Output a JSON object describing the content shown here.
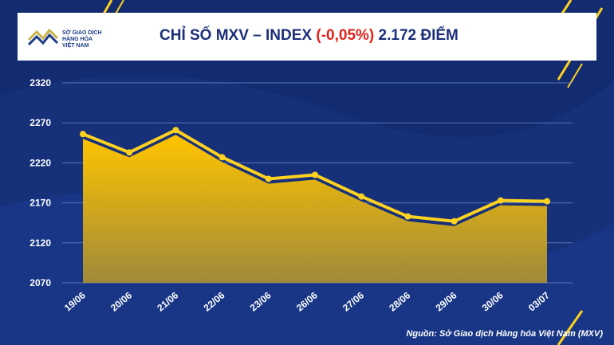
{
  "header": {
    "logo_lines": [
      "SỞ GIAO DỊCH",
      "HÀNG HÓA",
      "VIỆT NAM"
    ],
    "title_prefix": "CHỈ SỐ MXV – INDEX",
    "title_change": "(-0,05%)",
    "title_value": "2.172 ĐIỂM"
  },
  "colors": {
    "background": "#16307a",
    "line": "#ffd21f",
    "fill_top": "#ffc400",
    "fill_bottom": "#a08a3a",
    "negative": "#e2221a"
  },
  "chart_data": {
    "type": "area",
    "categories": [
      "19/06",
      "20/06",
      "21/06",
      "22/06",
      "23/06",
      "26/06",
      "27/06",
      "28/06",
      "29/06",
      "30/06",
      "03/07"
    ],
    "values": [
      2256,
      2233,
      2261,
      2227,
      2200,
      2205,
      2178,
      2153,
      2147,
      2173,
      2172
    ],
    "yticks": [
      2070,
      2120,
      2170,
      2220,
      2270,
      2320
    ],
    "ylim": [
      2070,
      2320
    ],
    "grid": true
  },
  "source": "Nguồn: Sở Giao dịch Hàng hóa Việt Nam (MXV)"
}
